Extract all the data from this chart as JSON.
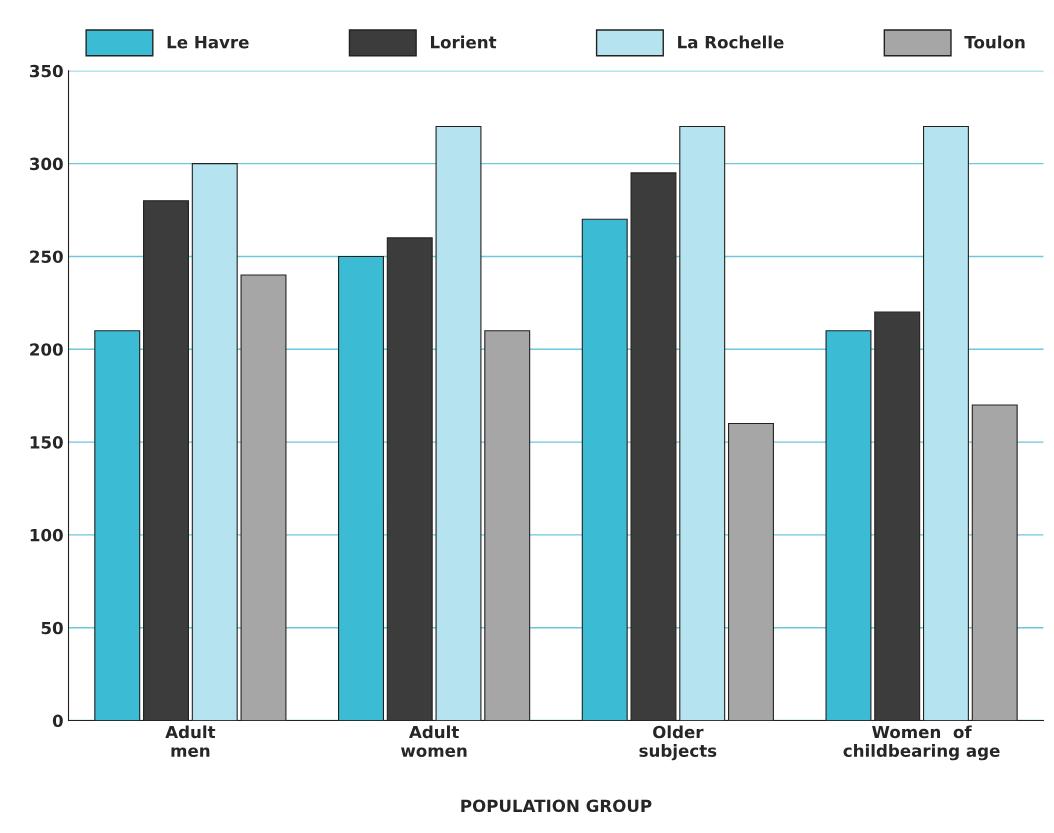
{
  "chart_data": {
    "type": "bar",
    "xlabel": "POPULATION GROUP",
    "categories": [
      "Adult\nmen",
      "Adult\nwomen",
      "Older\nsubjects",
      "Women  of\nchildbearing age"
    ],
    "series": [
      {
        "name": "Le Havre",
        "color": "#3bbcd4",
        "values": [
          210,
          250,
          270,
          210
        ]
      },
      {
        "name": "Lorient",
        "color": "#3c3c3c",
        "values": [
          280,
          260,
          295,
          220
        ]
      },
      {
        "name": "La Rochelle",
        "color": "#b5e3ef",
        "values": [
          300,
          320,
          320,
          320
        ]
      },
      {
        "name": "Toulon",
        "color": "#a6a6a6",
        "values": [
          240,
          210,
          160,
          170
        ]
      }
    ],
    "ylim": [
      0,
      350
    ],
    "yticks": [
      0,
      50,
      100,
      150,
      200,
      250,
      300,
      350
    ],
    "grid": "y",
    "legend": "top"
  }
}
